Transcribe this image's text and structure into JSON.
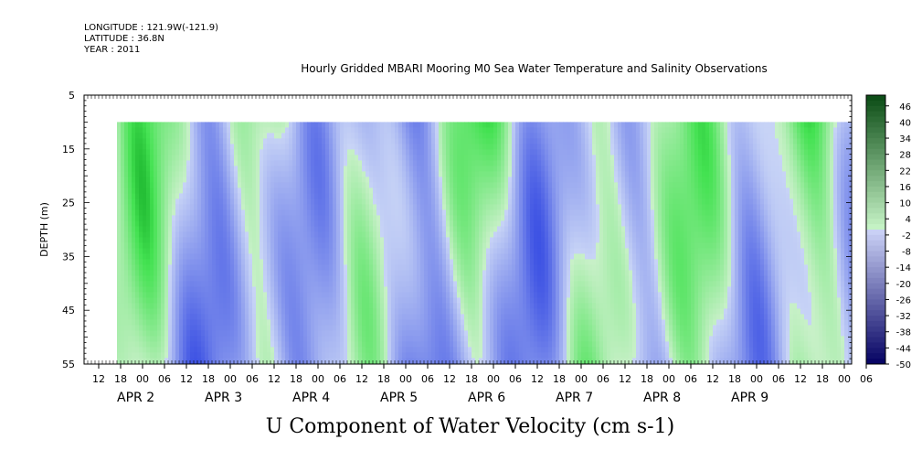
{
  "header": {
    "longitude": "LONGITUDE : 121.9W(-121.9)",
    "latitude": "LATITUDE : 36.8N",
    "year": "YEAR : 2011"
  },
  "chart_data": {
    "type": "heatmap",
    "title": "Hourly Gridded MBARI Mooring M0 Sea Water Temperature and Salinity Observations",
    "xlabel": "U Component of Water Velocity (cm s-1)",
    "ylabel": "DEPTH (m)",
    "ylim": [
      5,
      55
    ],
    "y_inverted": true,
    "y_ticks": [
      5,
      15,
      25,
      35,
      45,
      55
    ],
    "x_hour_ticks": [
      "12",
      "18",
      "00",
      "06",
      "12",
      "18",
      "00",
      "06",
      "12",
      "18",
      "00",
      "06",
      "12",
      "18",
      "00",
      "06",
      "12",
      "18",
      "00",
      "06",
      "12",
      "18",
      "00",
      "06",
      "12",
      "18",
      "00",
      "06",
      "12",
      "18",
      "00",
      "06",
      "12",
      "18",
      "00",
      "06"
    ],
    "date_labels": [
      {
        "label": "APR  2",
        "day": 2
      },
      {
        "label": "APR  3",
        "day": 3
      },
      {
        "label": "APR  4",
        "day": 4
      },
      {
        "label": "APR  5",
        "day": 5
      },
      {
        "label": "APR  6",
        "day": 6
      },
      {
        "label": "APR  7",
        "day": 7
      },
      {
        "label": "APR  8",
        "day": 8
      },
      {
        "label": "APR  9",
        "day": 9
      }
    ],
    "x_range_hours": [
      "APR 1 06:00",
      "APR 9 12:00"
    ],
    "data_start": "APR 1 18:00",
    "data_depth_range": [
      10,
      55
    ],
    "colorbar": {
      "min": -50,
      "max": 50,
      "labels": [
        "46",
        "40",
        "34",
        "28",
        "22",
        "16",
        "10",
        "4",
        "-2",
        "-8",
        "-14",
        "-20",
        "-26",
        "-32",
        "-38",
        "-44",
        "-50"
      ],
      "negative_color": "#6a7ff0",
      "positive_color": "#2edb5a"
    }
  }
}
